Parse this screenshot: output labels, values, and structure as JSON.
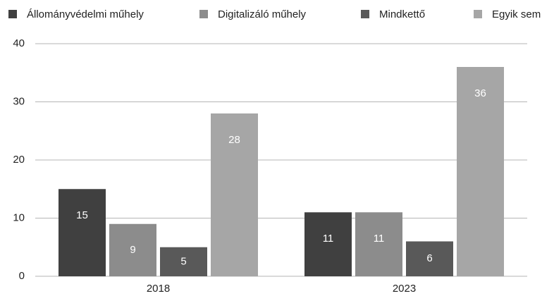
{
  "chart_data": {
    "type": "bar",
    "categories": [
      "2018",
      "2023"
    ],
    "series": [
      {
        "name": "Állományvédelmi műhely",
        "color": "#404040",
        "values": [
          15,
          11
        ]
      },
      {
        "name": "Digitalizáló műhely",
        "color": "#8c8c8c",
        "values": [
          9,
          11
        ]
      },
      {
        "name": "Mindkettő",
        "color": "#595959",
        "values": [
          5,
          6
        ]
      },
      {
        "name": "Egyik sem",
        "color": "#a6a6a6",
        "values": [
          28,
          36
        ]
      }
    ],
    "ylim": [
      0,
      40
    ],
    "yticks": [
      0,
      10,
      20,
      30,
      40
    ],
    "grid": true,
    "legend": "top"
  }
}
